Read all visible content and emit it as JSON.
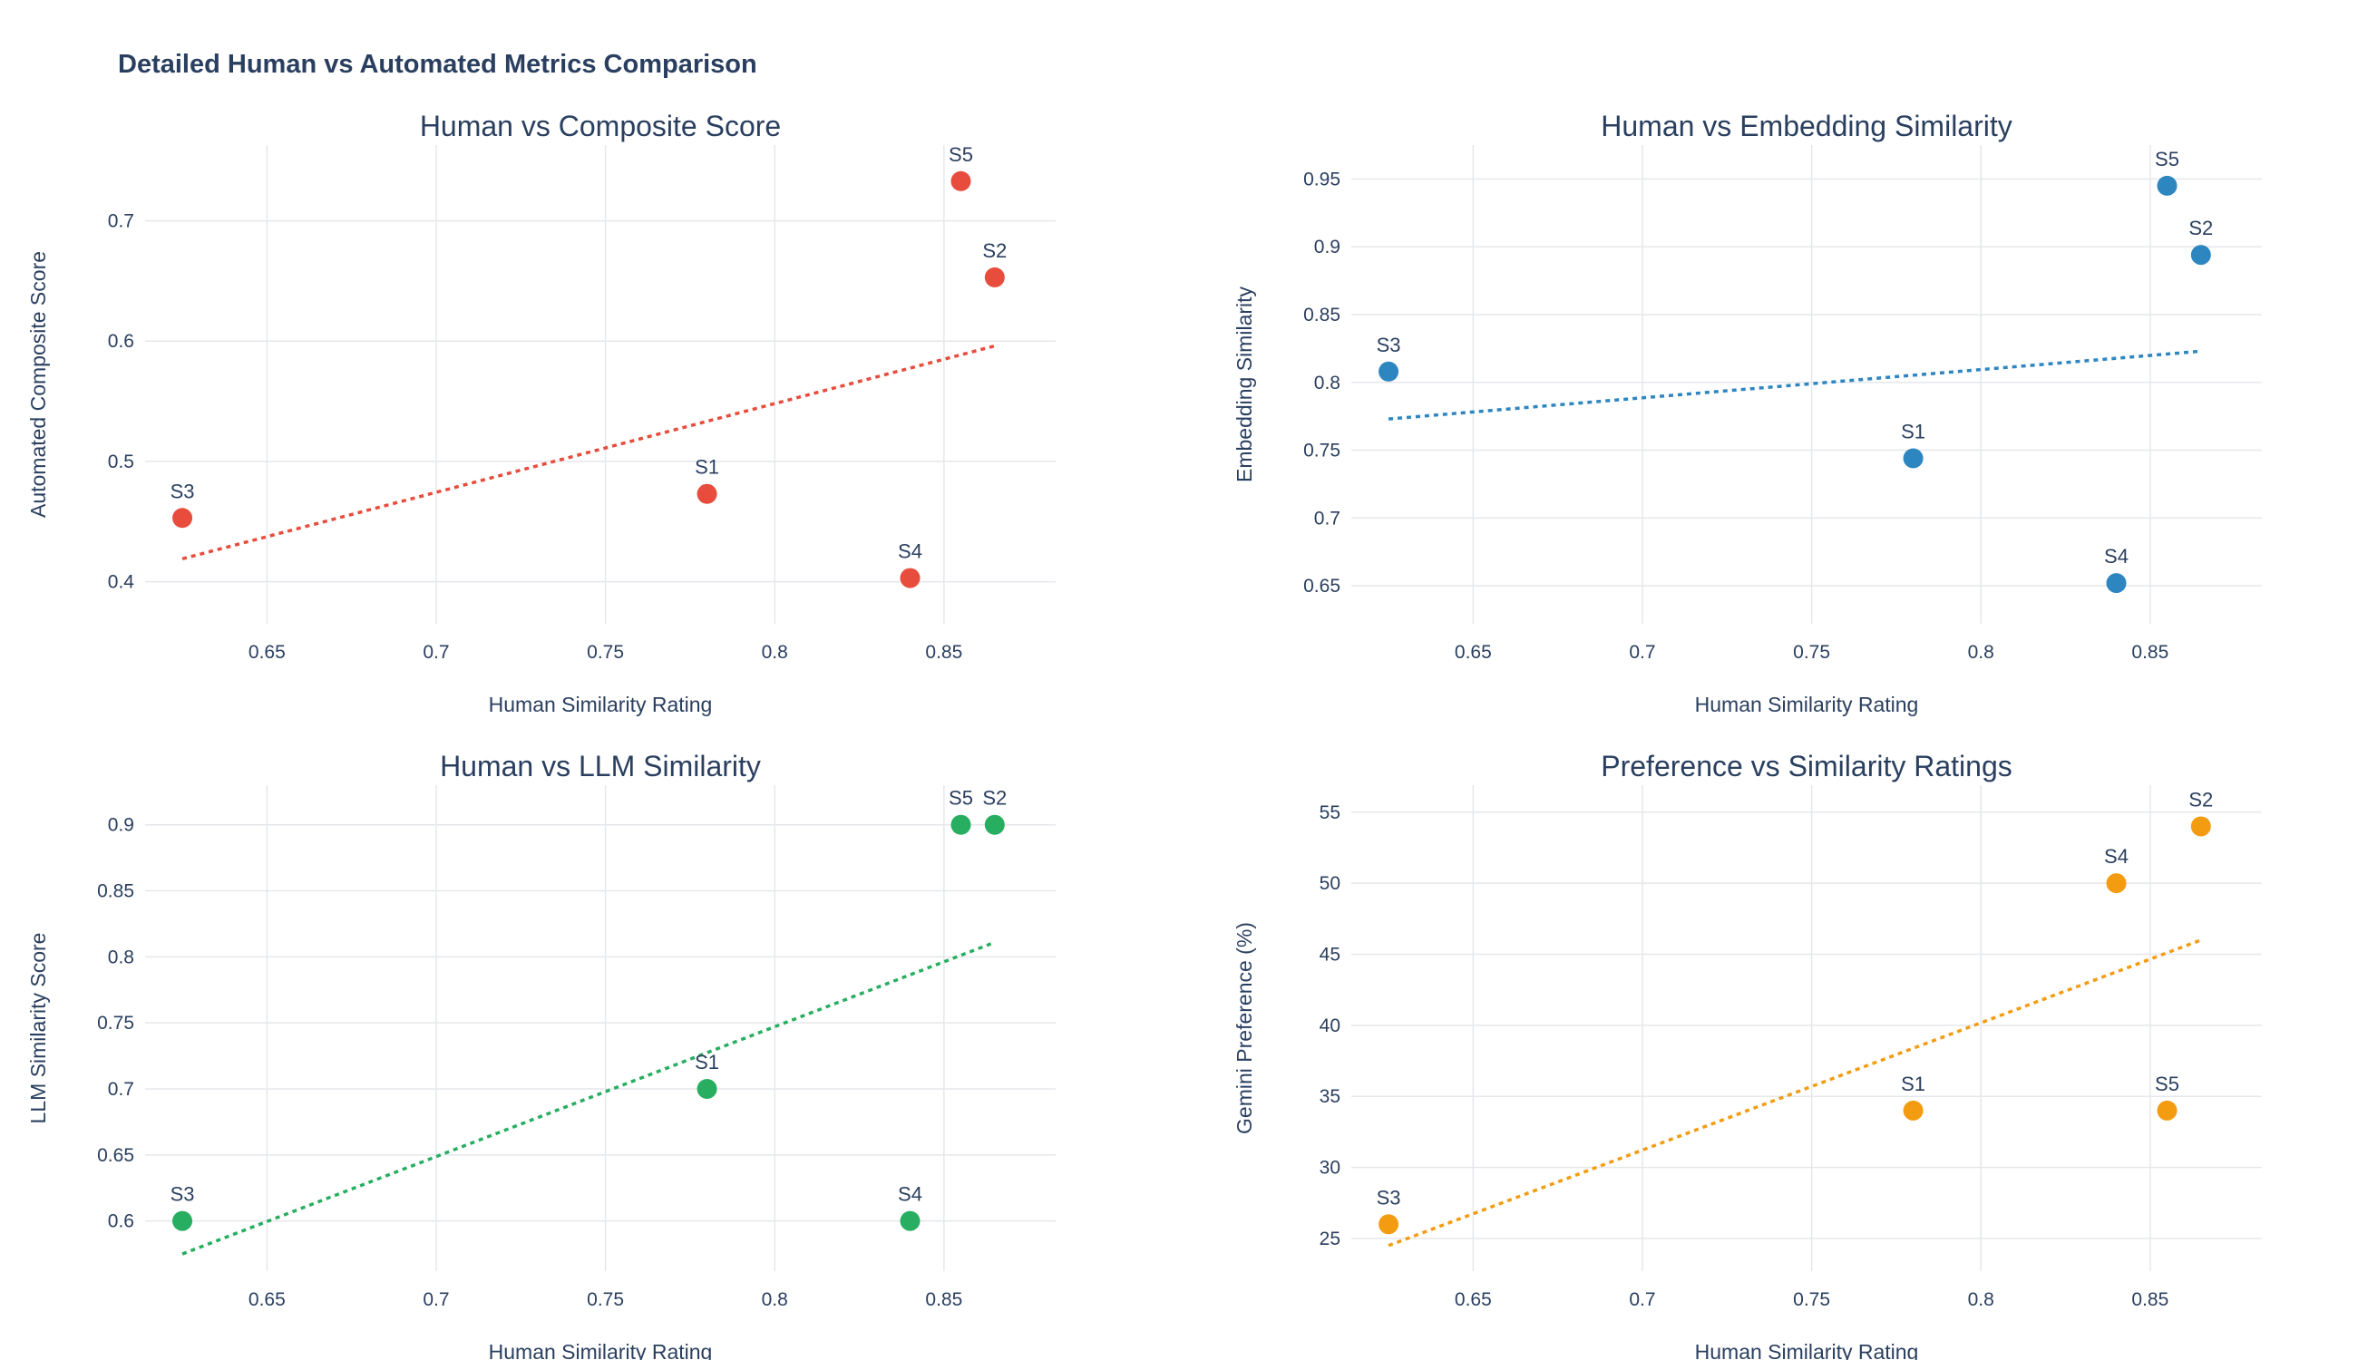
{
  "figure": {
    "title": "Detailed Human vs Automated Metrics Comparison"
  },
  "chart_data": [
    {
      "type": "scatter",
      "title": "Human vs Composite Score",
      "xlabel": "Human Similarity Rating",
      "ylabel": "Automated Composite Score",
      "color": "#e74c3c",
      "xlim": [
        0.614,
        0.883
      ],
      "ylim": [
        0.365,
        0.763
      ],
      "xticks": [
        0.65,
        0.7,
        0.75,
        0.8,
        0.85
      ],
      "yticks": [
        0.4,
        0.5,
        0.6,
        0.7
      ],
      "points": [
        {
          "label": "S1",
          "x": 0.78,
          "y": 0.473
        },
        {
          "label": "S2",
          "x": 0.865,
          "y": 0.653
        },
        {
          "label": "S3",
          "x": 0.625,
          "y": 0.453
        },
        {
          "label": "S4",
          "x": 0.84,
          "y": 0.403
        },
        {
          "label": "S5",
          "x": 0.855,
          "y": 0.733
        }
      ],
      "trendline": {
        "x": [
          0.625,
          0.865
        ],
        "y": [
          0.419,
          0.596
        ]
      },
      "grid": true,
      "legend": false
    },
    {
      "type": "scatter",
      "title": "Human vs Embedding Similarity",
      "xlabel": "Human Similarity Rating",
      "ylabel": "Embedding Similarity",
      "color": "#2e86c1",
      "xlim": [
        0.614,
        0.883
      ],
      "ylim": [
        0.622,
        0.975
      ],
      "xticks": [
        0.65,
        0.7,
        0.75,
        0.8,
        0.85
      ],
      "yticks": [
        0.65,
        0.7,
        0.75,
        0.8,
        0.85,
        0.9,
        0.95
      ],
      "points": [
        {
          "label": "S1",
          "x": 0.78,
          "y": 0.744
        },
        {
          "label": "S2",
          "x": 0.865,
          "y": 0.894
        },
        {
          "label": "S3",
          "x": 0.625,
          "y": 0.808
        },
        {
          "label": "S4",
          "x": 0.84,
          "y": 0.652
        },
        {
          "label": "S5",
          "x": 0.855,
          "y": 0.945
        }
      ],
      "trendline": {
        "x": [
          0.625,
          0.865
        ],
        "y": [
          0.773,
          0.823
        ]
      },
      "grid": true,
      "legend": false
    },
    {
      "type": "scatter",
      "title": "Human vs LLM Similarity",
      "xlabel": "Human Similarity Rating",
      "ylabel": "LLM Similarity Score",
      "color": "#27ae60",
      "xlim": [
        0.614,
        0.883
      ],
      "ylim": [
        0.562,
        0.93
      ],
      "xticks": [
        0.65,
        0.7,
        0.75,
        0.8,
        0.85
      ],
      "yticks": [
        0.6,
        0.65,
        0.7,
        0.75,
        0.8,
        0.85,
        0.9
      ],
      "points": [
        {
          "label": "S1",
          "x": 0.78,
          "y": 0.7
        },
        {
          "label": "S2",
          "x": 0.865,
          "y": 0.9
        },
        {
          "label": "S3",
          "x": 0.625,
          "y": 0.6
        },
        {
          "label": "S4",
          "x": 0.84,
          "y": 0.6
        },
        {
          "label": "S5",
          "x": 0.855,
          "y": 0.9
        }
      ],
      "trendline": {
        "x": [
          0.625,
          0.865
        ],
        "y": [
          0.575,
          0.811
        ]
      },
      "grid": true,
      "legend": false
    },
    {
      "type": "scatter",
      "title": "Preference vs Similarity Ratings",
      "xlabel": "Human Similarity Rating",
      "ylabel": "Gemini Preference (%)",
      "color": "#f39c12",
      "xlim": [
        0.614,
        0.883
      ],
      "ylim": [
        22.7,
        56.9
      ],
      "xticks": [
        0.65,
        0.7,
        0.75,
        0.8,
        0.85
      ],
      "yticks": [
        25,
        30,
        35,
        40,
        45,
        50,
        55
      ],
      "points": [
        {
          "label": "S1",
          "x": 0.78,
          "y": 34
        },
        {
          "label": "S2",
          "x": 0.865,
          "y": 54
        },
        {
          "label": "S3",
          "x": 0.625,
          "y": 26
        },
        {
          "label": "S4",
          "x": 0.84,
          "y": 50
        },
        {
          "label": "S5",
          "x": 0.855,
          "y": 34
        }
      ],
      "trendline": {
        "x": [
          0.625,
          0.865
        ],
        "y": [
          24.5,
          46.0
        ]
      },
      "grid": true,
      "legend": false
    }
  ]
}
